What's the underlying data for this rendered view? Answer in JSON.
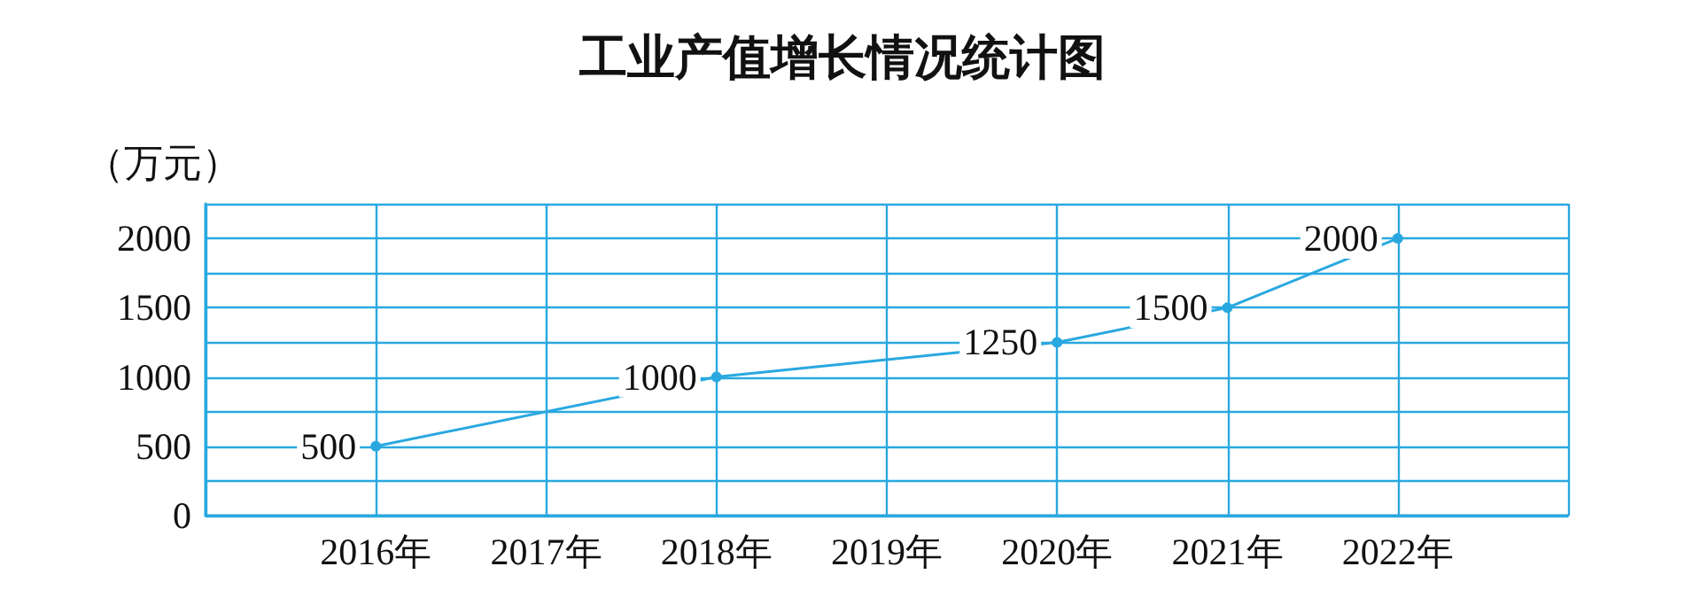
{
  "chart_data": {
    "type": "line",
    "title": "工业产值增长情况统计图",
    "ylabel": "（万元）",
    "x": [
      2016,
      2018,
      2020,
      2021,
      2022
    ],
    "values": [
      500,
      1000,
      1250,
      1500,
      2000
    ],
    "color": "#29a8e0",
    "xlim": [
      2015,
      2023
    ],
    "xticks": [
      {
        "value": 2015,
        "label": null
      },
      {
        "value": 2016,
        "label": "2016年"
      },
      {
        "value": 2017,
        "label": "2017年"
      },
      {
        "value": 2018,
        "label": "2018年"
      },
      {
        "value": 2019,
        "label": "2019年"
      },
      {
        "value": 2020,
        "label": "2020年"
      },
      {
        "value": 2021,
        "label": "2021年"
      },
      {
        "value": 2022,
        "label": "2022年"
      },
      {
        "value": 2023,
        "label": null
      }
    ],
    "ylim": [
      0,
      2250
    ],
    "yticks": [
      0,
      {
        "value": 250,
        "label": null
      },
      500,
      {
        "value": 750,
        "label": null
      },
      1000,
      {
        "value": 1250,
        "label": null
      },
      1500,
      {
        "value": 1750,
        "label": null
      },
      2000,
      {
        "value": 2250,
        "label": null
      }
    ],
    "grid": true,
    "data_labels": true,
    "marker": "circle",
    "line_style": "solid"
  }
}
